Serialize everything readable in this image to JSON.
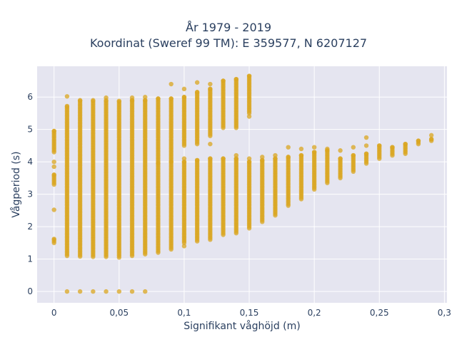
{
  "chart_data": {
    "type": "scatter",
    "title_line1": "År 1979 - 2019",
    "title_line2": "Koordinat (Sweref 99 TM): E 359577, N 6207127",
    "xlabel": "Signifikant våghöjd (m)",
    "ylabel": "Vågperiod (s)",
    "xlim": [
      -0.013,
      0.302
    ],
    "ylim": [
      -0.35,
      6.95
    ],
    "xticks": [
      {
        "value": 0,
        "label": "0"
      },
      {
        "value": 0.05,
        "label": "0,05"
      },
      {
        "value": 0.1,
        "label": "0,1"
      },
      {
        "value": 0.15,
        "label": "0,15"
      },
      {
        "value": 0.2,
        "label": "0,2"
      },
      {
        "value": 0.25,
        "label": "0,25"
      },
      {
        "value": 0.3,
        "label": "0,3"
      }
    ],
    "yticks": [
      {
        "value": 0,
        "label": "0"
      },
      {
        "value": 1,
        "label": "1"
      },
      {
        "value": 2,
        "label": "2"
      },
      {
        "value": 3,
        "label": "3"
      },
      {
        "value": 4,
        "label": "4"
      },
      {
        "value": 5,
        "label": "5"
      },
      {
        "value": 6,
        "label": "6"
      }
    ],
    "grid": true,
    "marker_color": "#DAA520",
    "background_color": "#E5E5F0",
    "columns": [
      {
        "x": 0.0,
        "ranges": [
          [
            3.3,
            3.6
          ],
          [
            4.3,
            4.95
          ],
          [
            1.5,
            1.62
          ]
        ],
        "points": [
          2.52,
          3.85,
          4.0
        ]
      },
      {
        "x": 0.01,
        "ranges": [
          [
            1.1,
            5.72
          ]
        ],
        "points": [
          0,
          6.02
        ]
      },
      {
        "x": 0.02,
        "ranges": [
          [
            1.08,
            5.9
          ]
        ],
        "points": [
          0
        ]
      },
      {
        "x": 0.03,
        "ranges": [
          [
            1.07,
            5.9
          ]
        ],
        "points": [
          0
        ]
      },
      {
        "x": 0.04,
        "ranges": [
          [
            1.07,
            5.9
          ]
        ],
        "points": [
          0,
          5.98
        ]
      },
      {
        "x": 0.05,
        "ranges": [
          [
            1.05,
            5.88
          ]
        ],
        "points": [
          0
        ]
      },
      {
        "x": 0.06,
        "ranges": [
          [
            1.1,
            5.9
          ]
        ],
        "points": [
          0,
          5.98
        ]
      },
      {
        "x": 0.07,
        "ranges": [
          [
            1.15,
            5.9
          ]
        ],
        "points": [
          0,
          6.0
        ]
      },
      {
        "x": 0.08,
        "ranges": [
          [
            1.2,
            5.95
          ]
        ],
        "points": [
          3.95
        ]
      },
      {
        "x": 0.09,
        "ranges": [
          [
            1.3,
            5.95
          ]
        ],
        "points": [
          4.0,
          6.4
        ]
      },
      {
        "x": 0.1,
        "ranges": [
          [
            1.5,
            4.0
          ],
          [
            4.5,
            6.0
          ]
        ],
        "points": [
          1.4,
          4.1,
          6.25
        ]
      },
      {
        "x": 0.11,
        "ranges": [
          [
            1.55,
            4.05
          ],
          [
            4.55,
            6.15
          ]
        ],
        "points": [
          6.45
        ]
      },
      {
        "x": 0.12,
        "ranges": [
          [
            1.6,
            4.1
          ],
          [
            4.8,
            6.25
          ]
        ],
        "points": [
          4.55,
          6.4
        ]
      },
      {
        "x": 0.13,
        "ranges": [
          [
            1.75,
            4.1
          ],
          [
            5.05,
            6.5
          ]
        ],
        "points": []
      },
      {
        "x": 0.14,
        "ranges": [
          [
            1.8,
            4.1
          ],
          [
            5.05,
            6.55
          ]
        ],
        "points": [
          4.2
        ]
      },
      {
        "x": 0.15,
        "ranges": [
          [
            1.95,
            4.0
          ],
          [
            5.5,
            6.65
          ]
        ],
        "points": [
          4.1,
          5.4
        ]
      },
      {
        "x": 0.16,
        "ranges": [
          [
            2.15,
            4.05
          ]
        ],
        "points": [
          4.15
        ]
      },
      {
        "x": 0.17,
        "ranges": [
          [
            2.35,
            4.1
          ]
        ],
        "points": [
          4.2
        ]
      },
      {
        "x": 0.18,
        "ranges": [
          [
            2.65,
            4.15
          ]
        ],
        "points": [
          4.45
        ]
      },
      {
        "x": 0.19,
        "ranges": [
          [
            2.85,
            4.2
          ]
        ],
        "points": [
          4.4
        ]
      },
      {
        "x": 0.2,
        "ranges": [
          [
            3.15,
            4.3
          ]
        ],
        "points": [
          4.45
        ]
      },
      {
        "x": 0.21,
        "ranges": [
          [
            3.35,
            4.35
          ]
        ],
        "points": [
          4.4
        ]
      },
      {
        "x": 0.22,
        "ranges": [
          [
            3.5,
            4.1
          ]
        ],
        "points": [
          4.35
        ]
      },
      {
        "x": 0.23,
        "ranges": [
          [
            3.7,
            4.2
          ]
        ],
        "points": [
          4.45
        ]
      },
      {
        "x": 0.24,
        "ranges": [
          [
            3.95,
            4.25
          ]
        ],
        "points": [
          4.75,
          4.5
        ]
      },
      {
        "x": 0.25,
        "ranges": [
          [
            4.1,
            4.5
          ]
        ],
        "points": []
      },
      {
        "x": 0.26,
        "ranges": [
          [
            4.2,
            4.45
          ]
        ],
        "points": []
      },
      {
        "x": 0.27,
        "ranges": [
          [
            4.25,
            4.55
          ]
        ],
        "points": []
      },
      {
        "x": 0.28,
        "ranges": [
          [
            4.55,
            4.65
          ]
        ],
        "points": []
      },
      {
        "x": 0.29,
        "ranges": [
          [
            4.65,
            4.7
          ]
        ],
        "points": [
          4.82
        ]
      }
    ]
  }
}
